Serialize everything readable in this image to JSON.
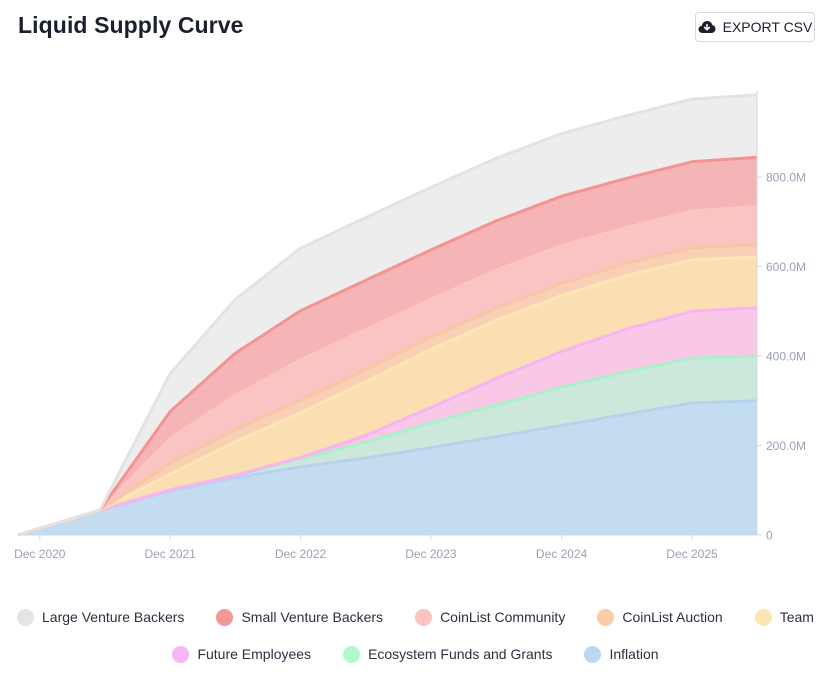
{
  "header": {
    "title": "Liquid Supply Curve",
    "export_label": "EXPORT CSV",
    "export_icon": "cloud-download-icon"
  },
  "chart_data": {
    "type": "area",
    "stacked": true,
    "title": "Liquid Supply Curve",
    "xlabel": "",
    "ylabel": "",
    "x": [
      "2020-10-15",
      "2021-06-01",
      "2021-12-15",
      "2022-06-15",
      "2022-12-15",
      "2023-06-15",
      "2023-12-15",
      "2024-06-15",
      "2024-12-15",
      "2025-06-15",
      "2025-12-15",
      "2026-06-15"
    ],
    "x_ticks": [
      "Dec 2020",
      "Dec 2021",
      "Dec 2022",
      "Dec 2023",
      "Dec 2024",
      "Dec 2025"
    ],
    "y_ticks": [
      "0",
      "200.0M",
      "400.0M",
      "600.0M",
      "800.0M"
    ],
    "ylim": [
      0,
      1000
    ],
    "y_unit": "M",
    "grid": false,
    "legend_position": "bottom",
    "series": [
      {
        "name": "Inflation",
        "color": "#c3dcf0",
        "line": "#b5d3ee",
        "values": [
          0,
          55,
          98,
          128,
          152,
          172,
          195,
          220,
          245,
          270,
          295,
          300
        ]
      },
      {
        "name": "Ecosystem Funds and Grants",
        "color": "#cce8da",
        "line": "#a8f2c9",
        "values": [
          0,
          0,
          3,
          5,
          18,
          35,
          55,
          70,
          85,
          95,
          100,
          100
        ]
      },
      {
        "name": "Future Employees",
        "color": "#f8c8e6",
        "line": "#f8b3f4",
        "values": [
          0,
          0,
          0,
          0,
          3,
          15,
          35,
          60,
          80,
          95,
          105,
          108
        ]
      },
      {
        "name": "Team",
        "color": "#fbdfb2",
        "line": "#fde8b5",
        "values": [
          0,
          0,
          35,
          75,
          100,
          120,
          130,
          130,
          125,
          120,
          115,
          113
        ]
      },
      {
        "name": "CoinList Auction",
        "color": "#f9cfb5",
        "line": "#f9c6a5",
        "values": [
          0,
          0,
          25,
          28,
          28,
          27,
          27,
          27,
          27,
          27,
          27,
          28
        ]
      },
      {
        "name": "CoinList Community",
        "color": "#f9c4c2",
        "line": "#fcc5c2",
        "values": [
          0,
          0,
          55,
          75,
          90,
          90,
          85,
          85,
          85,
          80,
          82,
          85
        ]
      },
      {
        "name": "Small Venture Backers",
        "color": "#f5b4b6",
        "line": "#f59393",
        "values": [
          0,
          0,
          60,
          95,
          110,
          110,
          110,
          110,
          110,
          110,
          110,
          110
        ]
      },
      {
        "name": "Large Venture Backers",
        "color": "#ededed",
        "line": "#e3e3e3",
        "values": [
          0,
          0,
          85,
          120,
          140,
          140,
          140,
          140,
          140,
          140,
          140,
          140
        ]
      }
    ]
  },
  "legend": {
    "rows": [
      [
        {
          "label": "Large Venture Backers",
          "color": "#e5e5e5"
        },
        {
          "label": "Small Venture Backers",
          "color": "#f29696"
        },
        {
          "label": "CoinList Community",
          "color": "#fcc3c0"
        },
        {
          "label": "CoinList Auction",
          "color": "#f9cda6"
        },
        {
          "label": "Team",
          "color": "#fde6b6"
        }
      ],
      [
        {
          "label": "Future Employees",
          "color": "#f8b6f4"
        },
        {
          "label": "Ecosystem Funds and Grants",
          "color": "#b2f7ce"
        },
        {
          "label": "Inflation",
          "color": "#bcd7f3"
        }
      ]
    ]
  }
}
